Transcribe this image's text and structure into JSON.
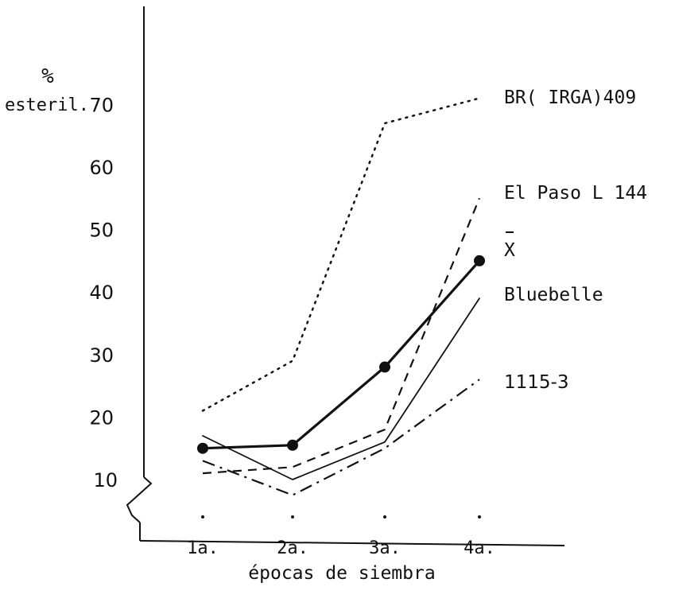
{
  "chart_data": {
    "type": "line",
    "title": "",
    "xlabel": "épocas de siembra",
    "ylabel": [
      "%",
      "esteril."
    ],
    "categories": [
      "1a.",
      "2a.",
      "3a.",
      "4a."
    ],
    "yticks": [
      10,
      20,
      30,
      40,
      50,
      60,
      70
    ],
    "ylim": [
      0,
      80
    ],
    "y_axis_break": true,
    "grid": false,
    "legend": "labels at right end of lines",
    "series": [
      {
        "name": "BR( IRGA)409",
        "style": "dotted",
        "values": [
          21,
          29,
          67,
          71
        ]
      },
      {
        "name": "El Paso L 144",
        "style": "dashed",
        "values": [
          11,
          12,
          18,
          55
        ]
      },
      {
        "name": "X",
        "style": "thick-solid-markers",
        "values": [
          15,
          15.5,
          28,
          45
        ]
      },
      {
        "name": "Bluebelle",
        "style": "solid",
        "values": [
          17,
          10,
          16,
          39
        ]
      },
      {
        "name": "1115-3",
        "style": "dash-dot",
        "values": [
          13,
          7.5,
          15,
          26
        ]
      }
    ]
  }
}
